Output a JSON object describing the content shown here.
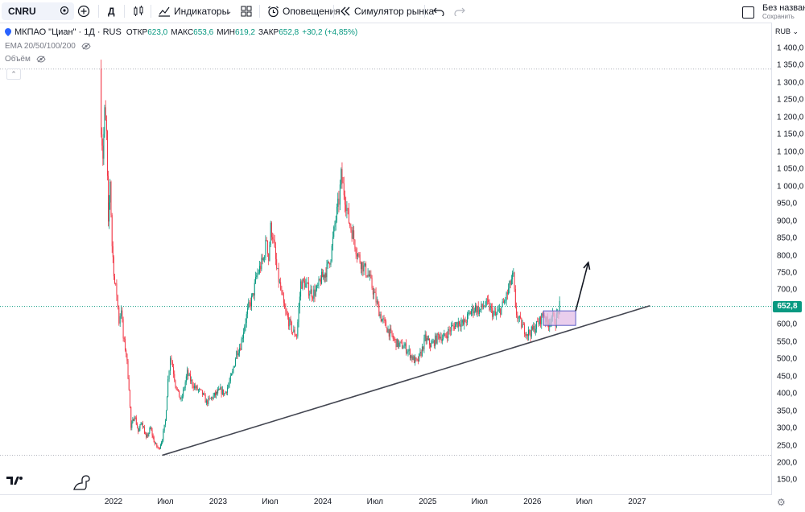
{
  "toolbar": {
    "symbol": "CNRU",
    "interval": "Д",
    "indicators_label": "Индикаторы",
    "alerts_label": "Оповещения",
    "replay_label": "Симулятор рынка",
    "layout_name": "Без назван",
    "save_label": "Сохранить"
  },
  "legend": {
    "name": "МКПАО \"Циан\" · 1Д · RUS",
    "open_label": "ОТКР",
    "open": "623,0",
    "high_label": "МАКС",
    "high": "653,6",
    "low_label": "МИН",
    "low": "619,2",
    "close_label": "ЗАКР",
    "close": "652,8",
    "change": "+30,2 (+4,85%)",
    "ema": "EMA 20/50/100/200",
    "volume": "Объём"
  },
  "axis": {
    "currency": "RUB",
    "current_price_label": "652,8",
    "price_ticks": [
      "1 400,0",
      "1 350,0",
      "1 300,0",
      "1 250,0",
      "1 200,0",
      "1 150,0",
      "1 100,0",
      "1 050,0",
      "1 000,0",
      "950,0",
      "900,0",
      "850,0",
      "800,0",
      "750,0",
      "700,0",
      "650,0",
      "600,0",
      "550,0",
      "500,0",
      "450,0",
      "400,0",
      "350,0",
      "300,0",
      "250,0",
      "200,0",
      "150,0"
    ],
    "time_ticks": [
      "2022",
      "Июл",
      "2023",
      "Июл",
      "2024",
      "Июл",
      "2025",
      "Июл",
      "2026",
      "Июл",
      "2027"
    ]
  },
  "colors": {
    "up": "#089981",
    "down": "#f23645",
    "trendline": "#434651",
    "box_fill": "#e1bee7",
    "box_border": "#5b5fc7"
  },
  "chart_data": {
    "type": "candlestick",
    "symbol": "CNRU",
    "interval": "1D",
    "ylim": [
      125,
      1425
    ],
    "current_price": 652.8,
    "price_path": [
      [
        "2021-11-15",
        1340
      ],
      [
        "2021-11-19",
        1180
      ],
      [
        "2021-11-25",
        1090
      ],
      [
        "2021-12-01",
        1210
      ],
      [
        "2021-12-08",
        1150
      ],
      [
        "2021-12-14",
        880
      ],
      [
        "2021-12-20",
        1020
      ],
      [
        "2021-12-27",
        830
      ],
      [
        "2022-01-05",
        720
      ],
      [
        "2022-01-12",
        690
      ],
      [
        "2022-01-20",
        610
      ],
      [
        "2022-01-28",
        650
      ],
      [
        "2022-02-04",
        560
      ],
      [
        "2022-02-14",
        520
      ],
      [
        "2022-02-24",
        420
      ],
      [
        "2022-03-03",
        300
      ],
      [
        "2022-03-15",
        340
      ],
      [
        "2022-03-28",
        290
      ],
      [
        "2022-04-10",
        320
      ],
      [
        "2022-04-25",
        270
      ],
      [
        "2022-05-10",
        300
      ],
      [
        "2022-05-25",
        255
      ],
      [
        "2022-06-08",
        240
      ],
      [
        "2022-06-20",
        270
      ],
      [
        "2022-07-01",
        320
      ],
      [
        "2022-07-10",
        440
      ],
      [
        "2022-07-18",
        510
      ],
      [
        "2022-07-26",
        480
      ],
      [
        "2022-08-05",
        430
      ],
      [
        "2022-08-15",
        400
      ],
      [
        "2022-08-25",
        380
      ],
      [
        "2022-09-05",
        420
      ],
      [
        "2022-09-15",
        460
      ],
      [
        "2022-09-26",
        440
      ],
      [
        "2022-10-10",
        420
      ],
      [
        "2022-10-24",
        410
      ],
      [
        "2022-11-07",
        400
      ],
      [
        "2022-11-21",
        375
      ],
      [
        "2022-12-05",
        385
      ],
      [
        "2022-12-19",
        395
      ],
      [
        "2023-01-09",
        410
      ],
      [
        "2023-01-23",
        400
      ],
      [
        "2023-02-06",
        425
      ],
      [
        "2023-02-20",
        460
      ],
      [
        "2023-03-06",
        520
      ],
      [
        "2023-03-20",
        540
      ],
      [
        "2023-04-03",
        600
      ],
      [
        "2023-04-17",
        650
      ],
      [
        "2023-05-01",
        680
      ],
      [
        "2023-05-15",
        740
      ],
      [
        "2023-05-29",
        770
      ],
      [
        "2023-06-08",
        790
      ],
      [
        "2023-06-19",
        850
      ],
      [
        "2023-06-26",
        790
      ],
      [
        "2023-07-03",
        880
      ],
      [
        "2023-07-10",
        860
      ],
      [
        "2023-07-24",
        760
      ],
      [
        "2023-08-07",
        700
      ],
      [
        "2023-08-21",
        640
      ],
      [
        "2023-09-04",
        610
      ],
      [
        "2023-09-18",
        580
      ],
      [
        "2023-10-02",
        570
      ],
      [
        "2023-10-16",
        720
      ],
      [
        "2023-10-30",
        720
      ],
      [
        "2023-11-13",
        700
      ],
      [
        "2023-11-27",
        690
      ],
      [
        "2023-12-11",
        700
      ],
      [
        "2023-12-25",
        730
      ],
      [
        "2024-01-15",
        760
      ],
      [
        "2024-01-29",
        800
      ],
      [
        "2024-02-12",
        890
      ],
      [
        "2024-02-26",
        960
      ],
      [
        "2024-03-05",
        1030
      ],
      [
        "2024-03-18",
        970
      ],
      [
        "2024-04-01",
        900
      ],
      [
        "2024-04-15",
        860
      ],
      [
        "2024-04-29",
        810
      ],
      [
        "2024-05-13",
        780
      ],
      [
        "2024-05-27",
        760
      ],
      [
        "2024-06-10",
        740
      ],
      [
        "2024-06-24",
        700
      ],
      [
        "2024-07-08",
        660
      ],
      [
        "2024-07-22",
        620
      ],
      [
        "2024-08-05",
        600
      ],
      [
        "2024-08-19",
        580
      ],
      [
        "2024-09-02",
        560
      ],
      [
        "2024-09-16",
        545
      ],
      [
        "2024-09-30",
        540
      ],
      [
        "2024-10-14",
        535
      ],
      [
        "2024-10-28",
        520
      ],
      [
        "2024-11-11",
        500
      ],
      [
        "2024-11-25",
        490
      ],
      [
        "2024-12-09",
        520
      ],
      [
        "2024-12-23",
        560
      ],
      [
        "2025-01-13",
        540
      ],
      [
        "2025-01-27",
        555
      ],
      [
        "2025-02-10",
        570
      ],
      [
        "2025-02-24",
        560
      ],
      [
        "2025-03-10",
        575
      ],
      [
        "2025-03-24",
        590
      ],
      [
        "2025-04-07",
        600
      ],
      [
        "2025-04-21",
        610
      ],
      [
        "2025-05-05",
        600
      ],
      [
        "2025-05-19",
        620
      ],
      [
        "2025-06-02",
        640
      ],
      [
        "2025-06-16",
        650
      ],
      [
        "2025-06-30",
        640
      ],
      [
        "2025-07-14",
        655
      ],
      [
        "2025-07-28",
        660
      ],
      [
        "2025-08-11",
        640
      ],
      [
        "2025-08-25",
        625
      ],
      [
        "2025-09-08",
        640
      ],
      [
        "2025-09-22",
        660
      ],
      [
        "2025-10-06",
        690
      ],
      [
        "2025-10-20",
        730
      ],
      [
        "2025-10-27",
        740
      ],
      [
        "2025-11-03",
        640
      ],
      [
        "2025-11-17",
        610
      ],
      [
        "2025-12-01",
        590
      ],
      [
        "2025-12-15",
        575
      ],
      [
        "2025-12-29",
        580
      ],
      [
        "2026-01-12",
        595
      ],
      [
        "2026-01-26",
        610
      ],
      [
        "2026-02-09",
        635
      ],
      [
        "2026-02-23",
        600
      ],
      [
        "2026-03-09",
        625
      ],
      [
        "2026-03-23",
        610
      ],
      [
        "2026-04-06",
        652.8
      ]
    ],
    "drawings": [
      {
        "type": "trendline",
        "from": [
          "2022-06-20",
          222
        ],
        "to": [
          "2027-02-15",
          655
        ]
      },
      {
        "type": "rectangle",
        "from": [
          "2026-02-09",
          640
        ],
        "to": [
          "2026-06-01",
          598
        ]
      },
      {
        "type": "arrow",
        "from": [
          "2026-06-01",
          640
        ],
        "to": [
          "2026-07-15",
          780
        ]
      }
    ]
  }
}
